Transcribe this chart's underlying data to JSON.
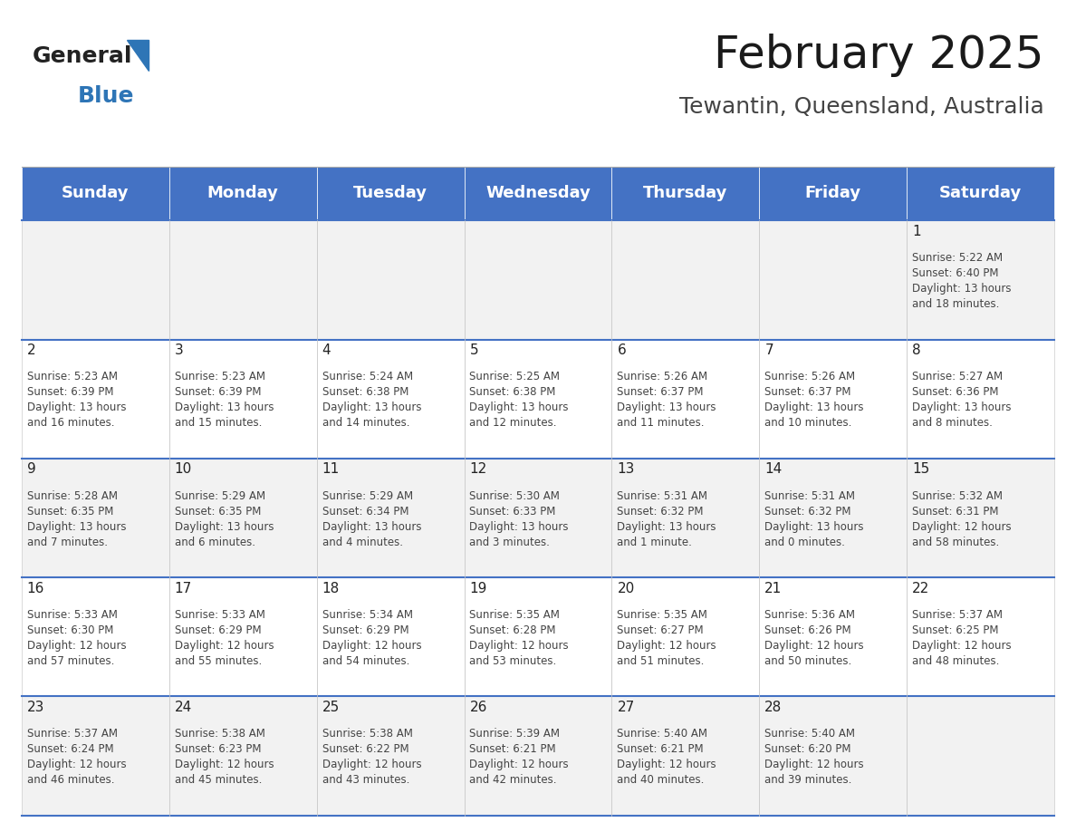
{
  "title": "February 2025",
  "subtitle": "Tewantin, Queensland, Australia",
  "header_bg": "#4472C4",
  "header_text_color": "#FFFFFF",
  "cell_bg_odd": "#F2F2F2",
  "cell_bg_even": "#FFFFFF",
  "day_headers": [
    "Sunday",
    "Monday",
    "Tuesday",
    "Wednesday",
    "Thursday",
    "Friday",
    "Saturday"
  ],
  "title_fontsize": 36,
  "subtitle_fontsize": 18,
  "header_fontsize": 13,
  "day_num_fontsize": 11,
  "cell_fontsize": 8.5,
  "logo_text_general": "General",
  "logo_text_blue": "Blue",
  "weeks": [
    [
      {
        "day": null,
        "info": null
      },
      {
        "day": null,
        "info": null
      },
      {
        "day": null,
        "info": null
      },
      {
        "day": null,
        "info": null
      },
      {
        "day": null,
        "info": null
      },
      {
        "day": null,
        "info": null
      },
      {
        "day": 1,
        "info": "Sunrise: 5:22 AM\nSunset: 6:40 PM\nDaylight: 13 hours\nand 18 minutes."
      }
    ],
    [
      {
        "day": 2,
        "info": "Sunrise: 5:23 AM\nSunset: 6:39 PM\nDaylight: 13 hours\nand 16 minutes."
      },
      {
        "day": 3,
        "info": "Sunrise: 5:23 AM\nSunset: 6:39 PM\nDaylight: 13 hours\nand 15 minutes."
      },
      {
        "day": 4,
        "info": "Sunrise: 5:24 AM\nSunset: 6:38 PM\nDaylight: 13 hours\nand 14 minutes."
      },
      {
        "day": 5,
        "info": "Sunrise: 5:25 AM\nSunset: 6:38 PM\nDaylight: 13 hours\nand 12 minutes."
      },
      {
        "day": 6,
        "info": "Sunrise: 5:26 AM\nSunset: 6:37 PM\nDaylight: 13 hours\nand 11 minutes."
      },
      {
        "day": 7,
        "info": "Sunrise: 5:26 AM\nSunset: 6:37 PM\nDaylight: 13 hours\nand 10 minutes."
      },
      {
        "day": 8,
        "info": "Sunrise: 5:27 AM\nSunset: 6:36 PM\nDaylight: 13 hours\nand 8 minutes."
      }
    ],
    [
      {
        "day": 9,
        "info": "Sunrise: 5:28 AM\nSunset: 6:35 PM\nDaylight: 13 hours\nand 7 minutes."
      },
      {
        "day": 10,
        "info": "Sunrise: 5:29 AM\nSunset: 6:35 PM\nDaylight: 13 hours\nand 6 minutes."
      },
      {
        "day": 11,
        "info": "Sunrise: 5:29 AM\nSunset: 6:34 PM\nDaylight: 13 hours\nand 4 minutes."
      },
      {
        "day": 12,
        "info": "Sunrise: 5:30 AM\nSunset: 6:33 PM\nDaylight: 13 hours\nand 3 minutes."
      },
      {
        "day": 13,
        "info": "Sunrise: 5:31 AM\nSunset: 6:32 PM\nDaylight: 13 hours\nand 1 minute."
      },
      {
        "day": 14,
        "info": "Sunrise: 5:31 AM\nSunset: 6:32 PM\nDaylight: 13 hours\nand 0 minutes."
      },
      {
        "day": 15,
        "info": "Sunrise: 5:32 AM\nSunset: 6:31 PM\nDaylight: 12 hours\nand 58 minutes."
      }
    ],
    [
      {
        "day": 16,
        "info": "Sunrise: 5:33 AM\nSunset: 6:30 PM\nDaylight: 12 hours\nand 57 minutes."
      },
      {
        "day": 17,
        "info": "Sunrise: 5:33 AM\nSunset: 6:29 PM\nDaylight: 12 hours\nand 55 minutes."
      },
      {
        "day": 18,
        "info": "Sunrise: 5:34 AM\nSunset: 6:29 PM\nDaylight: 12 hours\nand 54 minutes."
      },
      {
        "day": 19,
        "info": "Sunrise: 5:35 AM\nSunset: 6:28 PM\nDaylight: 12 hours\nand 53 minutes."
      },
      {
        "day": 20,
        "info": "Sunrise: 5:35 AM\nSunset: 6:27 PM\nDaylight: 12 hours\nand 51 minutes."
      },
      {
        "day": 21,
        "info": "Sunrise: 5:36 AM\nSunset: 6:26 PM\nDaylight: 12 hours\nand 50 minutes."
      },
      {
        "day": 22,
        "info": "Sunrise: 5:37 AM\nSunset: 6:25 PM\nDaylight: 12 hours\nand 48 minutes."
      }
    ],
    [
      {
        "day": 23,
        "info": "Sunrise: 5:37 AM\nSunset: 6:24 PM\nDaylight: 12 hours\nand 46 minutes."
      },
      {
        "day": 24,
        "info": "Sunrise: 5:38 AM\nSunset: 6:23 PM\nDaylight: 12 hours\nand 45 minutes."
      },
      {
        "day": 25,
        "info": "Sunrise: 5:38 AM\nSunset: 6:22 PM\nDaylight: 12 hours\nand 43 minutes."
      },
      {
        "day": 26,
        "info": "Sunrise: 5:39 AM\nSunset: 6:21 PM\nDaylight: 12 hours\nand 42 minutes."
      },
      {
        "day": 27,
        "info": "Sunrise: 5:40 AM\nSunset: 6:21 PM\nDaylight: 12 hours\nand 40 minutes."
      },
      {
        "day": 28,
        "info": "Sunrise: 5:40 AM\nSunset: 6:20 PM\nDaylight: 12 hours\nand 39 minutes."
      },
      {
        "day": null,
        "info": null
      }
    ]
  ]
}
